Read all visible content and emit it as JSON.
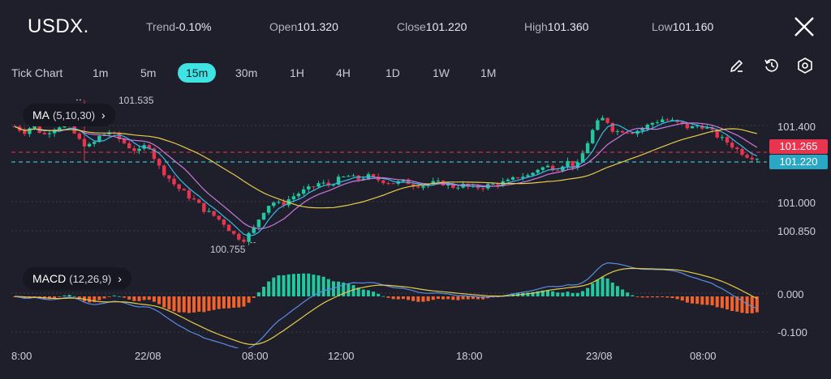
{
  "header": {
    "symbol": "USDX.",
    "stats": [
      {
        "label": "Trend",
        "value": "-0.10%"
      },
      {
        "label": "Open",
        "value": "101.320"
      },
      {
        "label": "Close",
        "value": "101.220"
      },
      {
        "label": "High",
        "value": "101.360"
      },
      {
        "label": "Low",
        "value": "101.160"
      }
    ],
    "close_icon": "close-icon"
  },
  "timeframes": [
    "Tick Chart",
    "1m",
    "5m",
    "15m",
    "30m",
    "1H",
    "4H",
    "1D",
    "1W",
    "1M"
  ],
  "active_timeframe": "15m",
  "tools": [
    "pencil-icon",
    "history-icon",
    "settings-icon"
  ],
  "indicators": {
    "ma": {
      "name": "MA",
      "params": "(5,10,30)"
    },
    "macd": {
      "name": "MACD",
      "params": "(12,26,9)"
    }
  },
  "annotations": {
    "high": "101.535",
    "low": "100.755"
  },
  "price_axis": {
    "labels": [
      "101.400",
      "101.000",
      "100.850"
    ],
    "tag_red": "101.265",
    "tag_cyan": "101.220"
  },
  "macd_axis": {
    "labels": [
      "0.000",
      "-0.100"
    ]
  },
  "time_axis": {
    "labels": [
      "8:00",
      "22/08",
      "08:00",
      "12:00",
      "18:00",
      "23/08",
      "08:00"
    ]
  },
  "colors": {
    "background": "#1e1f2a",
    "up": "#22c9a0",
    "down": "#e8344f",
    "accent": "#3fe3e3",
    "ma5": "#3ab8e8",
    "ma10": "#c77be0",
    "ma30": "#e5cc4a",
    "macd_line": "#5b8ce6",
    "signal_line": "#e5cc4a",
    "hist_pos": "#22c9a0",
    "hist_neg": "#f2622c"
  },
  "chart_data": {
    "type": "candlestick",
    "price_range": [
      100.7,
      101.55
    ],
    "close_path": [
      101.39,
      101.36,
      101.4,
      101.34,
      101.38,
      101.4,
      101.37,
      101.3,
      101.28,
      101.34,
      101.36,
      101.32,
      101.28,
      101.25,
      101.3,
      101.18,
      101.12,
      101.06,
      101.02,
      100.98,
      100.93,
      100.9,
      100.86,
      100.8,
      100.77,
      100.82,
      100.92,
      100.98,
      100.96,
      101.0,
      101.03,
      101.05,
      101.08,
      101.07,
      101.1,
      101.12,
      101.1,
      101.12,
      101.1,
      101.09,
      101.08,
      101.09,
      101.07,
      101.07,
      101.08,
      101.08,
      101.06,
      101.07,
      101.05,
      101.06,
      101.07,
      101.08,
      101.09,
      101.12,
      101.12,
      101.16,
      101.17,
      101.16,
      101.2,
      101.16,
      101.28,
      101.4,
      101.44,
      101.36,
      101.37,
      101.36,
      101.38,
      101.41,
      101.43,
      101.42,
      101.4,
      101.38,
      101.4,
      101.37,
      101.33,
      101.3,
      101.26,
      101.23,
      101.22
    ],
    "annotations": {
      "high": 101.535,
      "low": 100.755
    }
  }
}
